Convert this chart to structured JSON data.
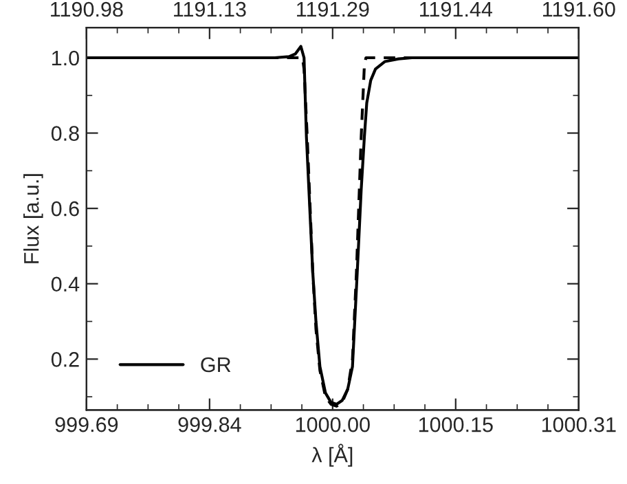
{
  "chart_data": {
    "type": "line",
    "xlabel": "λ [Å]",
    "ylabel": "Flux [a.u.]",
    "xlim": [
      999.69,
      1000.31
    ],
    "xticks": [
      {
        "value": 999.69,
        "label": "999.69"
      },
      {
        "value": 999.845,
        "label": "999.84"
      },
      {
        "value": 1000.0,
        "label": "1000.00"
      },
      {
        "value": 1000.155,
        "label": "1000.15"
      },
      {
        "value": 1000.31,
        "label": "1000.31"
      }
    ],
    "x2lim": [
      1190.98,
      1191.6
    ],
    "x2ticks": [
      {
        "value": 1190.98,
        "label": "1190.98"
      },
      {
        "value": 1191.135,
        "label": "1191.13"
      },
      {
        "value": 1191.29,
        "label": "1191.29"
      },
      {
        "value": 1191.445,
        "label": "1191.44"
      },
      {
        "value": 1191.6,
        "label": "1191.60"
      }
    ],
    "ylim": [
      0.065,
      1.08
    ],
    "yticks": [
      {
        "value": 0.2,
        "label": "0.2"
      },
      {
        "value": 0.4,
        "label": "0.4"
      },
      {
        "value": 0.6,
        "label": "0.6"
      },
      {
        "value": 0.8,
        "label": "0.8"
      },
      {
        "value": 1.0,
        "label": "1.0"
      }
    ],
    "legend": "bottom left",
    "grid": false,
    "marker": "none",
    "series": [
      {
        "name": "GR",
        "color": "#000000",
        "line_style": "solid",
        "x": [
          999.69,
          999.927,
          999.945,
          999.953,
          999.96,
          999.964,
          999.967,
          999.975,
          999.979,
          999.984,
          999.991,
          999.998,
          1000.005,
          1000.012,
          1000.019,
          1000.025,
          1000.031,
          1000.036,
          1000.04,
          1000.043,
          1000.048,
          1000.054,
          1000.066,
          1000.083,
          1000.1,
          1000.31
        ],
        "values": [
          1.0,
          1.0,
          1.003,
          1.01,
          1.03,
          1.0,
          0.79,
          0.43,
          0.3,
          0.18,
          0.11,
          0.085,
          0.08,
          0.09,
          0.12,
          0.18,
          0.43,
          0.65,
          0.79,
          0.88,
          0.94,
          0.97,
          0.99,
          0.997,
          1.0,
          1.0
        ]
      },
      {
        "color": "#000000",
        "line_style": "dashed",
        "x": [
          999.69,
          999.962,
          999.964,
          999.968,
          999.975,
          999.979,
          999.984,
          999.991,
          999.998,
          1000.005,
          1000.012,
          1000.019,
          1000.025,
          1000.03,
          1000.036,
          1000.04,
          1000.042,
          1000.31
        ],
        "values": [
          1.0,
          1.0,
          0.97,
          0.79,
          0.43,
          0.28,
          0.17,
          0.1,
          0.08,
          0.075,
          0.085,
          0.12,
          0.2,
          0.43,
          0.79,
          0.98,
          1.0,
          1.0
        ]
      }
    ]
  }
}
